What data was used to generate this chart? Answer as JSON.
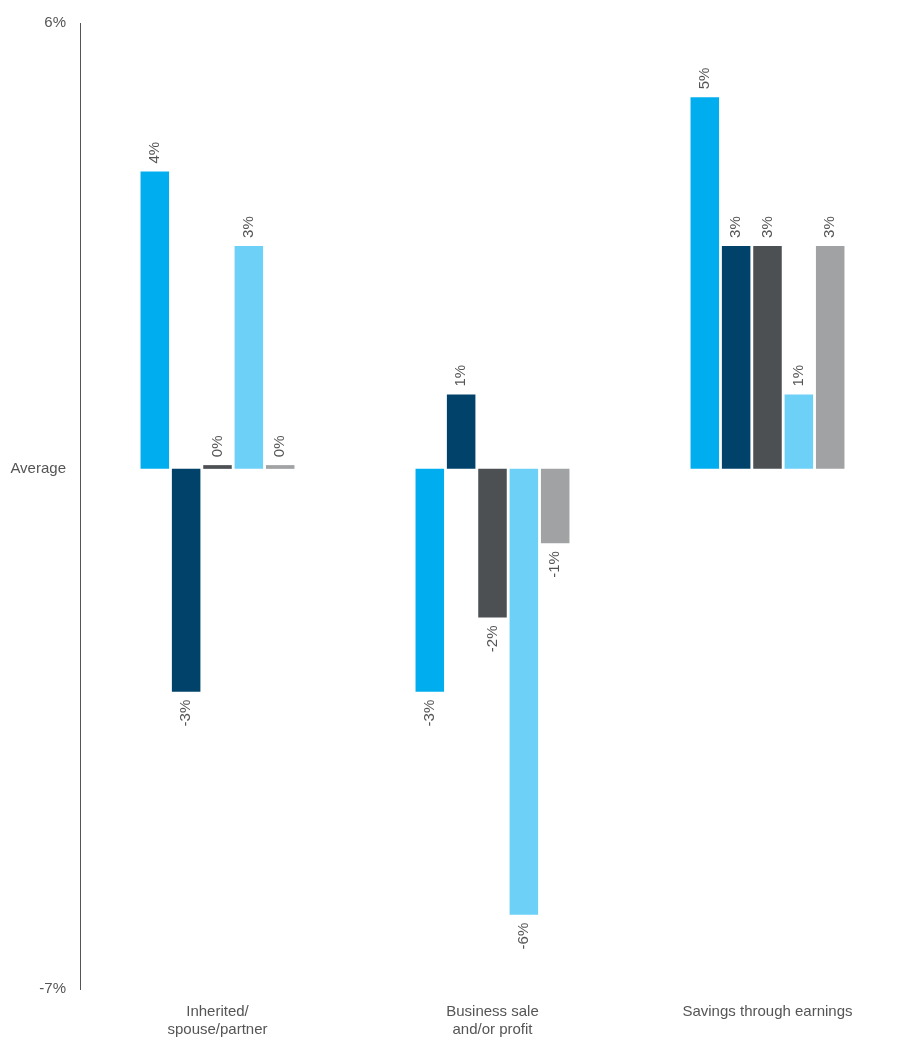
{
  "chart_data": {
    "type": "bar",
    "categories": [
      "Inherited/\nspouse/partner",
      "Business sale\nand/or profit",
      "Savings through earnings"
    ],
    "series": [
      {
        "color": "#00aeef",
        "values": [
          4,
          -3,
          5
        ],
        "value_labels": [
          "4%",
          "-3%",
          "5%"
        ]
      },
      {
        "color": "#004269",
        "values": [
          -3,
          1,
          3
        ],
        "value_labels": [
          "-3%",
          "1%",
          "3%"
        ]
      },
      {
        "color": "#4d5053",
        "values": [
          0.05,
          -2,
          3
        ],
        "value_labels": [
          "0%",
          "-2%",
          "3%"
        ]
      },
      {
        "color": "#6dd0f7",
        "values": [
          3,
          -6,
          1
        ],
        "value_labels": [
          "3%",
          "-6%",
          "1%"
        ]
      },
      {
        "color": "#a0a2a4",
        "values": [
          0.05,
          -1,
          3
        ],
        "value_labels": [
          "0%",
          "-1%",
          "3%"
        ]
      }
    ],
    "ylim": [
      -7,
      6
    ],
    "yticks": [
      {
        "value": 6,
        "label": "6%"
      },
      {
        "value": 0,
        "label": "Average"
      },
      {
        "value": -7,
        "label": "-7%"
      }
    ],
    "grid": false,
    "legend": false
  }
}
